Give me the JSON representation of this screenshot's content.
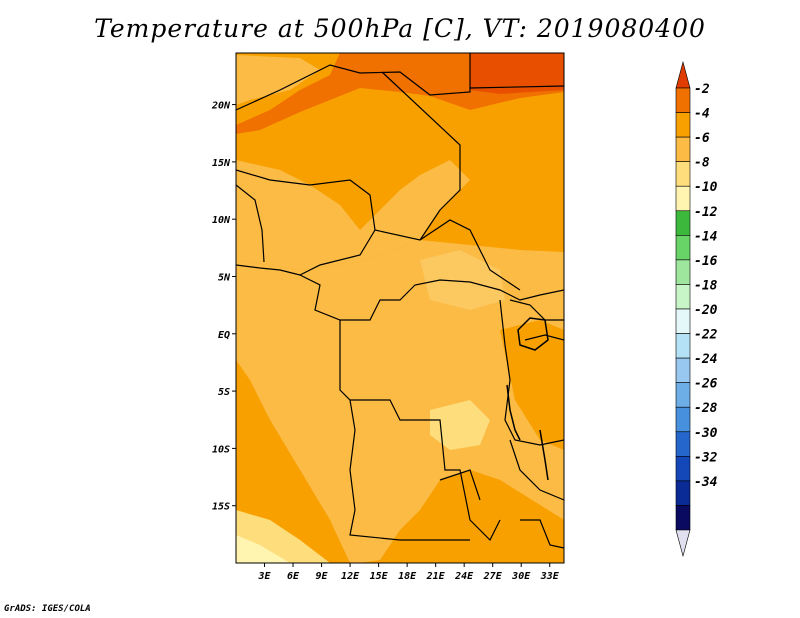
{
  "title": "Temperature at 500hPa [C], VT: 2019080400",
  "credit": "GrADS: IGES/COLA",
  "map": {
    "variable": "Temperature at 500hPa",
    "units": "C",
    "valid_time": "2019080400",
    "lat_range": [
      -20,
      24.5
    ],
    "lon_range": [
      0,
      34.5
    ],
    "lat_ticks": [
      {
        "value": 20,
        "label": "20N"
      },
      {
        "value": 15,
        "label": "15N"
      },
      {
        "value": 10,
        "label": "10N"
      },
      {
        "value": 5,
        "label": "5N"
      },
      {
        "value": 0,
        "label": "EQ"
      },
      {
        "value": -5,
        "label": "5S"
      },
      {
        "value": -10,
        "label": "10S"
      },
      {
        "value": -15,
        "label": "15S"
      }
    ],
    "lon_ticks": [
      {
        "value": 3,
        "label": "3E"
      },
      {
        "value": 6,
        "label": "6E"
      },
      {
        "value": 9,
        "label": "9E"
      },
      {
        "value": 12,
        "label": "12E"
      },
      {
        "value": 15,
        "label": "15E"
      },
      {
        "value": 18,
        "label": "18E"
      },
      {
        "value": 21,
        "label": "21E"
      },
      {
        "value": 24,
        "label": "24E"
      },
      {
        "value": 27,
        "label": "27E"
      },
      {
        "value": 30,
        "label": "30E"
      },
      {
        "value": 33,
        "label": "33E"
      }
    ],
    "dominant_band": "-6 to -4"
  },
  "colorbar": {
    "levels": [
      "-2",
      "-4",
      "-6",
      "-8",
      "-10",
      "-12",
      "-14",
      "-16",
      "-18",
      "-20",
      "-22",
      "-24",
      "-26",
      "-28",
      "-30",
      "-32",
      "-34"
    ],
    "colors": [
      "#e03c00",
      "#f07000",
      "#f8a000",
      "#fbbb45",
      "#fddd7c",
      "#fff5b0",
      "#3cb93c",
      "#68d468",
      "#9ee59e",
      "#c8f5c8",
      "#e4f8fa",
      "#b4e1f5",
      "#98c8f0",
      "#6eaee6",
      "#4690dd",
      "#2566cc",
      "#1448b8",
      "#0a2a96",
      "#0a0a60",
      "#e0e0f0"
    ]
  }
}
